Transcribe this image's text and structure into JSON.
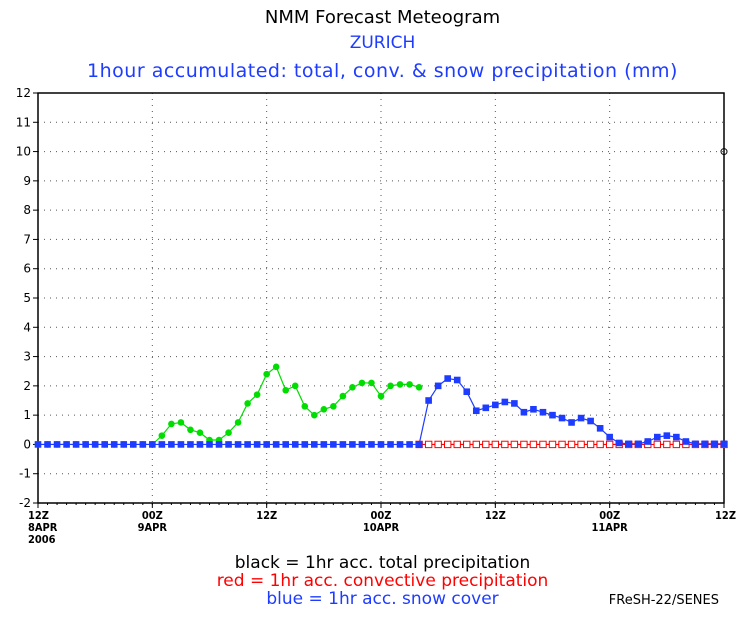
{
  "header": {
    "title": "NMM Forecast Meteogram",
    "location": "ZURICH",
    "subtitle": "1hour accumulated: total, conv. & snow precipitation (mm)"
  },
  "legend": {
    "black": "black = 1hr acc. total precipitation",
    "red": "red = 1hr acc. convective precipitation",
    "blue": "blue = 1hr acc. snow cover"
  },
  "credit": "FReSH-22/SENES",
  "colors": {
    "total": "#00dd00",
    "convective": "#ff0000",
    "snow": "#1e3cff",
    "axis": "#000000"
  },
  "chart_data": {
    "type": "line",
    "title": "1hour accumulated: total, conv. & snow precipitation (mm)",
    "xlabel": "",
    "ylabel": "mm",
    "ylim": [
      -2,
      12
    ],
    "yticks": [
      "12",
      "11",
      "10",
      "9",
      "8",
      "7",
      "6",
      "5",
      "4",
      "3",
      "2",
      "1",
      "0",
      "-1",
      "-2"
    ],
    "xlim_hours": [
      0,
      72
    ],
    "xticks": [
      {
        "hour": 0,
        "time": "12Z",
        "date": "8APR",
        "year": "2006"
      },
      {
        "hour": 12,
        "time": "00Z",
        "date": "9APR",
        "year": ""
      },
      {
        "hour": 24,
        "time": "12Z",
        "date": "",
        "year": ""
      },
      {
        "hour": 36,
        "time": "00Z",
        "date": "10APR",
        "year": ""
      },
      {
        "hour": 48,
        "time": "12Z",
        "date": "",
        "year": ""
      },
      {
        "hour": 60,
        "time": "00Z",
        "date": "11APR",
        "year": ""
      },
      {
        "hour": 72,
        "time": "12Z",
        "date": "",
        "year": ""
      }
    ],
    "grid": true,
    "series": [
      {
        "name": "total precipitation (green)",
        "marker": "filled-circle",
        "x": [
          0,
          1,
          2,
          3,
          4,
          5,
          6,
          7,
          8,
          9,
          10,
          11,
          12,
          13,
          14,
          15,
          16,
          17,
          18,
          19,
          20,
          21,
          22,
          23,
          24,
          25,
          26,
          27,
          28,
          29,
          30,
          31,
          32,
          33,
          34,
          35,
          36,
          37,
          38,
          39,
          40
        ],
        "values": [
          0,
          0,
          0,
          0,
          0,
          0,
          0,
          0,
          0,
          0,
          0,
          0,
          0,
          0.3,
          0.7,
          0.75,
          0.5,
          0.4,
          0.15,
          0.15,
          0.4,
          0.75,
          1.4,
          1.7,
          2.4,
          2.65,
          1.85,
          2.0,
          1.3,
          1.0,
          1.2,
          1.3,
          1.65,
          1.95,
          2.1,
          2.1,
          1.65,
          2.0,
          2.05,
          2.05,
          1.95
        ]
      },
      {
        "name": "convective precipitation (red)",
        "marker": "open-square",
        "x": [
          40,
          41,
          42,
          43,
          44,
          45,
          46,
          47,
          48,
          49,
          50,
          51,
          52,
          53,
          54,
          55,
          56,
          57,
          58,
          59,
          60,
          61,
          62,
          63,
          64,
          65,
          66,
          67,
          68,
          69,
          70,
          71,
          72
        ],
        "values": [
          0,
          0,
          0,
          0,
          0,
          0,
          0,
          0,
          0,
          0,
          0,
          0,
          0,
          0,
          0,
          0,
          0,
          0,
          0,
          0,
          0,
          0,
          0,
          0,
          0,
          0,
          0,
          0,
          0,
          0,
          0,
          0,
          0
        ]
      },
      {
        "name": "snow cover (blue)",
        "marker": "filled-square",
        "x": [
          0,
          1,
          2,
          3,
          4,
          5,
          6,
          7,
          8,
          9,
          10,
          11,
          12,
          13,
          14,
          15,
          16,
          17,
          18,
          19,
          20,
          21,
          22,
          23,
          24,
          25,
          26,
          27,
          28,
          29,
          30,
          31,
          32,
          33,
          34,
          35,
          36,
          37,
          38,
          39,
          40,
          41,
          42,
          43,
          44,
          45,
          46,
          47,
          48,
          49,
          50,
          51,
          52,
          53,
          54,
          55,
          56,
          57,
          58,
          59,
          60,
          61,
          62,
          63,
          64,
          65,
          66,
          67,
          68,
          69,
          70,
          71,
          72
        ],
        "values": [
          0,
          0,
          0,
          0,
          0,
          0,
          0,
          0,
          0,
          0,
          0,
          0,
          0,
          0,
          0,
          0,
          0,
          0,
          0,
          0,
          0,
          0,
          0,
          0,
          0,
          0,
          0,
          0,
          0,
          0,
          0,
          0,
          0,
          0,
          0,
          0,
          0,
          0,
          0,
          0,
          0,
          1.5,
          2.0,
          2.25,
          2.2,
          1.8,
          1.15,
          1.25,
          1.35,
          1.45,
          1.4,
          1.1,
          1.2,
          1.1,
          1.0,
          0.9,
          0.75,
          0.9,
          0.8,
          0.55,
          0.25,
          0.05,
          0.02,
          0.02,
          0.1,
          0.25,
          0.3,
          0.25,
          0.1,
          0.02,
          0.02,
          0.02,
          0.02
        ]
      }
    ]
  }
}
